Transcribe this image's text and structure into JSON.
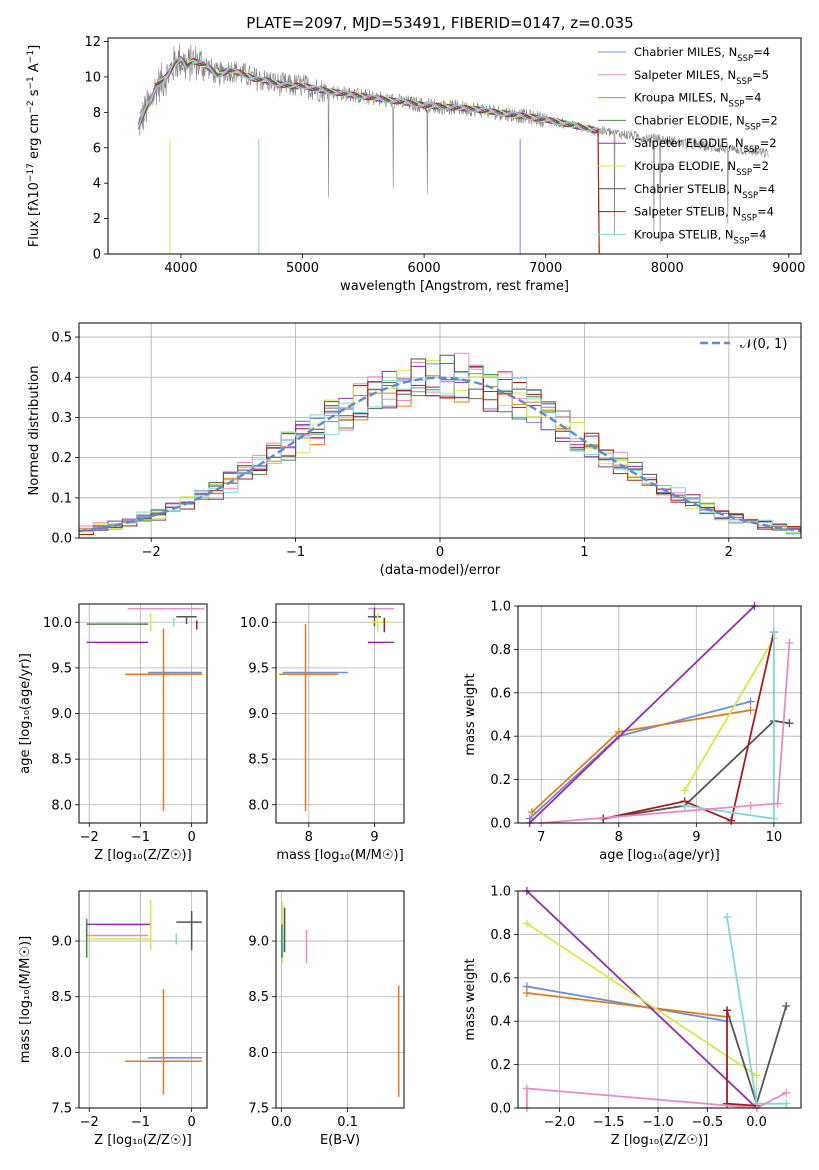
{
  "figure": {
    "title": "PLATE=2097, MJD=53491, FIBERID=0147, z=0.035"
  },
  "colors": [
    "#6a8fdb",
    "#e88bc4",
    "#e07b1e",
    "#4a8a4a",
    "#8e2fae",
    "#d4e84e",
    "#555555",
    "#a61c1c",
    "#7fd8d8"
  ],
  "chart_data": [
    {
      "id": "spectrum",
      "type": "line",
      "title": "PLATE=2097, MJD=53491, FIBERID=0147, z=0.035",
      "xlabel": "wavelength [Angstrom, rest frame]",
      "ylabel": "Flux [f_λ10^-17 erg cm^-2 s^-1 A^-1]",
      "xlim": [
        3400,
        9100
      ],
      "ylim": [
        0,
        12.2
      ],
      "xticks": [
        4000,
        5000,
        6000,
        7000,
        8000,
        9000
      ],
      "yticks": [
        0,
        2,
        4,
        6,
        8,
        10,
        12
      ],
      "observed_spectrum": {
        "color": "#808080",
        "x": [
          3650,
          3700,
          3750,
          3800,
          3850,
          3900,
          3950,
          4000,
          4050,
          4100,
          4200,
          4300,
          4400,
          4500,
          4600,
          4700,
          4800,
          4900,
          5000,
          5200,
          5400,
          5600,
          5800,
          6000,
          6200,
          6400,
          6600,
          6800,
          7000,
          7200,
          7400,
          7600,
          7800,
          8000,
          8200,
          8400,
          8600,
          8800
        ],
        "y": [
          7.2,
          8.0,
          8.6,
          9.5,
          9.8,
          10.2,
          10.8,
          11.0,
          10.6,
          10.9,
          10.7,
          10.1,
          10.4,
          10.2,
          9.9,
          9.8,
          9.6,
          9.5,
          9.5,
          9.2,
          9.0,
          8.8,
          8.6,
          8.4,
          8.3,
          8.2,
          8.0,
          7.8,
          7.6,
          7.3,
          7.0,
          6.8,
          6.6,
          6.4,
          6.2,
          6.0,
          5.9,
          5.7
        ]
      },
      "series": [
        {
          "name": "Chabrier MILES, N_SSP=4",
          "n_ssp": "4"
        },
        {
          "name": "Salpeter MILES, N_SSP=5",
          "n_ssp": "5"
        },
        {
          "name": "Kroupa MILES, N_SSP=4",
          "n_ssp": "4"
        },
        {
          "name": "Chabrier ELODIE, N_SSP=2",
          "n_ssp": "2"
        },
        {
          "name": "Salpeter ELODIE, N_SSP=2",
          "n_ssp": "2"
        },
        {
          "name": "Kroupa ELODIE, N_SSP=2",
          "n_ssp": "2"
        },
        {
          "name": "Chabrier STELIB, N_SSP=4",
          "n_ssp": "4"
        },
        {
          "name": "Salpeter STELIB, N_SSP=4",
          "n_ssp": "4"
        },
        {
          "name": "Kroupa STELIB, N_SSP=4",
          "n_ssp": "4"
        }
      ],
      "legend": {
        "location": "top-right",
        "labels": [
          "Chabrier MILES, N",
          "Salpeter MILES, N",
          "Kroupa MILES, N",
          "Chabrier ELODIE, N",
          "Salpeter ELODIE, N",
          "Kroupa ELODIE, N",
          "Chabrier STELIB, N",
          "Salpeter STELIB, N",
          "Kroupa STELIB, N"
        ],
        "sub": "SSP",
        "values": [
          "=4",
          "=5",
          "=4",
          "=2",
          "=2",
          "=2",
          "=4",
          "=4",
          "=4"
        ]
      }
    },
    {
      "id": "residuals",
      "type": "line",
      "xlabel": "(data-model)/error",
      "ylabel": "Normed distribution",
      "xlim": [
        -2.5,
        2.5
      ],
      "ylim": [
        0,
        0.535
      ],
      "xticks": [
        -2,
        -1,
        0,
        1,
        2
      ],
      "xticklabels": [
        "−2",
        "−1",
        "0",
        "1",
        "2"
      ],
      "yticks": [
        0.0,
        0.1,
        0.2,
        0.3,
        0.4,
        0.5
      ],
      "yticklabels": [
        "0.0",
        "0.1",
        "0.2",
        "0.3",
        "0.4",
        "0.5"
      ],
      "gaussian": {
        "name": "N(0,1)",
        "label": "𝒩(0, 1)",
        "color": "#5b8bd6",
        "mean": 0,
        "sigma": 1
      },
      "bin_width": 0.1,
      "histogram_envelope": [
        0.025,
        0.025,
        0.03,
        0.04,
        0.05,
        0.06,
        0.065,
        0.075,
        0.085,
        0.1,
        0.115,
        0.13,
        0.145,
        0.16,
        0.18,
        0.195,
        0.21,
        0.23,
        0.25,
        0.27,
        0.29,
        0.31,
        0.325,
        0.34,
        0.355,
        0.37,
        0.38,
        0.39,
        0.395,
        0.4,
        0.4,
        0.4,
        0.395,
        0.39,
        0.38,
        0.37,
        0.355,
        0.34,
        0.325,
        0.31,
        0.29,
        0.27,
        0.25,
        0.23,
        0.21,
        0.195,
        0.18,
        0.16,
        0.145,
        0.13,
        0.115
      ]
    },
    {
      "id": "age-vs-Z",
      "type": "scatter",
      "xlabel": "Z [log₁₀(Z/Z☉)]",
      "ylabel": "age [log₁₀(age/yr)]",
      "xlim": [
        -2.2,
        0.3
      ],
      "ylim": [
        7.8,
        10.2
      ],
      "xticks": [
        -2,
        -1,
        0
      ],
      "xticklabels": [
        "−2",
        "−1",
        "0"
      ],
      "yticks": [
        8.0,
        8.5,
        9.0,
        9.5,
        10.0
      ],
      "yticklabels": [
        "8.0",
        "8.5",
        "9.0",
        "9.5",
        "10.0"
      ],
      "errorbars": [
        {
          "color": 0,
          "x": -0.55,
          "xerr": [
            0.3,
            0.75
          ],
          "y": 9.45,
          "yerr": [
            0.0,
            0.0
          ]
        },
        {
          "color": 1,
          "x": -0.25,
          "xerr": [
            1.0,
            0.5
          ],
          "y": 10.15,
          "yerr": [
            0.0,
            0.0
          ]
        },
        {
          "color": 2,
          "x": -0.55,
          "xerr": [
            0.75,
            0.75
          ],
          "y": 9.43,
          "yerr": [
            1.5,
            0.5
          ]
        },
        {
          "color": 3,
          "x": -2.05,
          "xerr": [
            0.0,
            1.2
          ],
          "y": 9.98,
          "yerr": [
            0.0,
            0.0
          ]
        },
        {
          "color": 4,
          "x": -1.45,
          "xerr": [
            0.6,
            0.6
          ],
          "y": 9.78,
          "yerr": [
            0.0,
            0.0
          ]
        },
        {
          "color": 5,
          "x": -0.8,
          "xerr": [
            0.0,
            0.0
          ],
          "y": 10.0,
          "yerr": [
            0.1,
            0.1
          ]
        },
        {
          "color": 6,
          "x": -0.1,
          "xerr": [
            0.2,
            0.2
          ],
          "y": 10.06,
          "yerr": [
            0.08,
            0.0
          ]
        },
        {
          "color": 7,
          "x": 0.1,
          "xerr": [
            0.0,
            0.0
          ],
          "y": 9.97,
          "yerr": [
            0.05,
            0.05
          ]
        },
        {
          "color": 8,
          "x": -0.35,
          "xerr": [
            0.0,
            0.0
          ],
          "y": 10.0,
          "yerr": [
            0.05,
            0.05
          ]
        }
      ]
    },
    {
      "id": "age-vs-mass",
      "type": "scatter",
      "xlabel": "mass [log₁₀(M/M☉)]",
      "xlim": [
        7.5,
        9.45
      ],
      "ylim": [
        7.8,
        10.2
      ],
      "xticks": [
        8,
        9
      ],
      "yticks": [
        8.0,
        8.5,
        9.0,
        9.5,
        10.0
      ],
      "yticklabels": [
        "8.0",
        "8.5",
        "9.0",
        "9.5",
        "10.0"
      ],
      "errorbars": [
        {
          "color": 0,
          "x": 8.1,
          "xerr": [
            0.5,
            0.5
          ],
          "y": 9.45,
          "yerr": [
            0.0,
            0.0
          ]
        },
        {
          "color": 2,
          "x": 7.95,
          "xerr": [
            0.4,
            0.5
          ],
          "y": 9.43,
          "yerr": [
            1.5,
            0.55
          ]
        },
        {
          "color": 1,
          "x": 9.1,
          "xerr": [
            0.2,
            0.2
          ],
          "y": 10.15,
          "yerr": [
            0.0,
            0.0
          ]
        },
        {
          "color": 4,
          "x": 9.1,
          "xerr": [
            0.2,
            0.2
          ],
          "y": 9.78,
          "yerr": [
            0.0,
            0.0
          ]
        },
        {
          "color": 6,
          "x": 9.0,
          "xerr": [
            0.1,
            0.1
          ],
          "y": 10.06,
          "yerr": [
            0.1,
            0.1
          ]
        },
        {
          "color": 5,
          "x": 9.05,
          "xerr": [
            0.1,
            0.2
          ],
          "y": 10.0,
          "yerr": [
            0.1,
            0.1
          ]
        },
        {
          "color": 7,
          "x": 9.15,
          "xerr": [
            0.0,
            0.0
          ],
          "y": 9.97,
          "yerr": [
            0.08,
            0.08
          ]
        }
      ]
    },
    {
      "id": "weight-vs-age",
      "type": "line",
      "xlabel": "age [log₁₀(age/yr)]",
      "ylabel": "mass weight",
      "xlim": [
        6.7,
        10.35
      ],
      "ylim": [
        0.0,
        1.0
      ],
      "xticks": [
        7,
        8,
        9,
        10
      ],
      "yticks": [
        0.0,
        0.2,
        0.4,
        0.6,
        0.8,
        1.0
      ],
      "yticklabels": [
        "0.0",
        "0.2",
        "0.4",
        "0.6",
        "0.8",
        "1.0"
      ],
      "series": [
        {
          "color": 0,
          "x": [
            6.85,
            8.0,
            9.7
          ],
          "y": [
            0.02,
            0.4,
            0.56
          ]
        },
        {
          "color": 2,
          "x": [
            6.88,
            8.0,
            9.7
          ],
          "y": [
            0.05,
            0.42,
            0.52
          ]
        },
        {
          "color": 4,
          "x": [
            6.85,
            9.75
          ],
          "y": [
            0.0,
            1.0
          ]
        },
        {
          "color": 5,
          "x": [
            8.85,
            10.0
          ],
          "y": [
            0.15,
            0.85
          ]
        },
        {
          "color": 6,
          "x": [
            7.8,
            8.85,
            10.0,
            10.2
          ],
          "y": [
            0.02,
            0.08,
            0.47,
            0.46
          ]
        },
        {
          "color": 7,
          "x": [
            7.8,
            8.85,
            9.45,
            10.0
          ],
          "y": [
            0.02,
            0.1,
            0.01,
            0.88
          ]
        },
        {
          "color": 8,
          "x": [
            8.85,
            10.0,
            10.0
          ],
          "y": [
            0.08,
            0.02,
            0.88
          ]
        },
        {
          "color": 1,
          "x": [
            7.0,
            9.7,
            10.05,
            10.2
          ],
          "y": [
            0.0,
            0.08,
            0.09,
            0.83
          ]
        }
      ]
    },
    {
      "id": "mass-vs-Z",
      "type": "scatter",
      "xlabel": "Z [log₁₀(Z/Z☉)]",
      "ylabel": "mass [log₁₀(M/M☉)]",
      "xlim": [
        -2.2,
        0.3
      ],
      "ylim": [
        7.5,
        9.45
      ],
      "xticks": [
        -2,
        -1,
        0
      ],
      "xticklabels": [
        "−2",
        "−1",
        "0"
      ],
      "yticks": [
        7.5,
        8.0,
        8.5,
        9.0
      ],
      "yticklabels": [
        "7.5",
        "8.0",
        "8.5",
        "9.0"
      ],
      "errorbars": [
        {
          "color": 0,
          "x": -0.55,
          "xerr": [
            0.3,
            0.75
          ],
          "y": 7.95,
          "yerr": [
            0.0,
            0.0
          ]
        },
        {
          "color": 2,
          "x": -0.55,
          "xerr": [
            0.75,
            0.75
          ],
          "y": 7.92,
          "yerr": [
            0.3,
            0.65
          ]
        },
        {
          "color": 4,
          "x": -2.05,
          "xerr": [
            0.0,
            1.25
          ],
          "y": 9.15,
          "yerr": [
            0.1,
            0.0
          ]
        },
        {
          "color": 5,
          "x": -0.8,
          "xerr": [
            1.25,
            0.0
          ],
          "y": 9.02,
          "yerr": [
            0.1,
            0.35
          ]
        },
        {
          "color": 1,
          "x": -1.45,
          "xerr": [
            0.6,
            0.6
          ],
          "y": 9.05,
          "yerr": [
            0.0,
            0.0
          ]
        },
        {
          "color": 6,
          "x": 0.0,
          "xerr": [
            0.3,
            0.2
          ],
          "y": 9.17,
          "yerr": [
            0.25,
            0.1
          ]
        },
        {
          "color": 3,
          "x": -2.05,
          "xerr": [
            0.0,
            0.0
          ],
          "y": 9.0,
          "yerr": [
            0.15,
            0.2
          ]
        },
        {
          "color": 8,
          "x": -0.3,
          "xerr": [
            0.0,
            0.0
          ],
          "y": 9.02,
          "yerr": [
            0.05,
            0.05
          ]
        }
      ]
    },
    {
      "id": "mass-vs-EBV",
      "type": "scatter",
      "xlabel": "E(B-V)",
      "xlim": [
        -0.008,
        0.185
      ],
      "ylim": [
        7.5,
        9.45
      ],
      "xticks": [
        0.0,
        0.1
      ],
      "xticklabels": [
        "0.0",
        "0.1"
      ],
      "yticks": [
        7.5,
        8.0,
        8.5,
        9.0
      ],
      "yticklabels": [
        "7.5",
        "8.0",
        "8.5",
        "9.0"
      ],
      "errorbars": [
        {
          "color": 2,
          "x": 0.177,
          "xerr": [
            0.0,
            0.0
          ],
          "y": 8.1,
          "yerr": [
            0.5,
            0.5
          ]
        },
        {
          "color": 1,
          "x": 0.038,
          "xerr": [
            0.0,
            0.0
          ],
          "y": 8.95,
          "yerr": [
            0.15,
            0.15
          ]
        },
        {
          "color": 5,
          "x": 0.002,
          "xerr": [
            0.0,
            0.0
          ],
          "y": 9.1,
          "yerr": [
            0.3,
            0.25
          ]
        },
        {
          "color": 6,
          "x": 0.005,
          "xerr": [
            0.0,
            0.0
          ],
          "y": 9.1,
          "yerr": [
            0.2,
            0.2
          ]
        },
        {
          "color": 3,
          "x": 0.001,
          "xerr": [
            0.0,
            0.0
          ],
          "y": 9.0,
          "yerr": [
            0.15,
            0.15
          ]
        },
        {
          "color": 8,
          "x": 0.003,
          "xerr": [
            0.0,
            0.0
          ],
          "y": 9.0,
          "yerr": [
            0.1,
            0.1
          ]
        }
      ]
    },
    {
      "id": "weight-vs-Z",
      "type": "line",
      "xlabel": "Z [log₁₀(Z/Z☉)]",
      "ylabel": "mass weight",
      "xlim": [
        -2.42,
        0.45
      ],
      "ylim": [
        0.0,
        1.0
      ],
      "xticks": [
        -2.0,
        -1.5,
        -1.0,
        -0.5,
        0.0
      ],
      "xticklabels": [
        "−2.0",
        "−1.5",
        "−1.0",
        "−0.5",
        "0.0"
      ],
      "yticks": [
        0.0,
        0.2,
        0.4,
        0.6,
        0.8,
        1.0
      ],
      "yticklabels": [
        "0.0",
        "0.2",
        "0.4",
        "0.6",
        "0.8",
        "1.0"
      ],
      "series": [
        {
          "color": 0,
          "x": [
            -2.33,
            -0.3
          ],
          "y": [
            0.56,
            0.4
          ]
        },
        {
          "color": 2,
          "x": [
            -2.33,
            -0.3
          ],
          "y": [
            0.53,
            0.42
          ]
        },
        {
          "color": 4,
          "x": [
            -2.33,
            0.0
          ],
          "y": [
            1.0,
            0.0
          ]
        },
        {
          "color": 5,
          "x": [
            -2.33,
            0.0
          ],
          "y": [
            0.85,
            0.15
          ]
        },
        {
          "color": 6,
          "x": [
            -0.3,
            0.0,
            0.3
          ],
          "y": [
            0.45,
            0.02,
            0.47
          ]
        },
        {
          "color": 7,
          "x": [
            -0.3,
            -0.3,
            0.0
          ],
          "y": [
            0.45,
            0.02,
            0.01
          ]
        },
        {
          "color": 8,
          "x": [
            -0.3,
            0.0,
            0.3
          ],
          "y": [
            0.88,
            0.02,
            0.02
          ]
        },
        {
          "color": 1,
          "x": [
            -2.33,
            -2.33,
            0.0,
            0.3
          ],
          "y": [
            0.0,
            0.09,
            0.0,
            0.07
          ]
        }
      ]
    }
  ]
}
